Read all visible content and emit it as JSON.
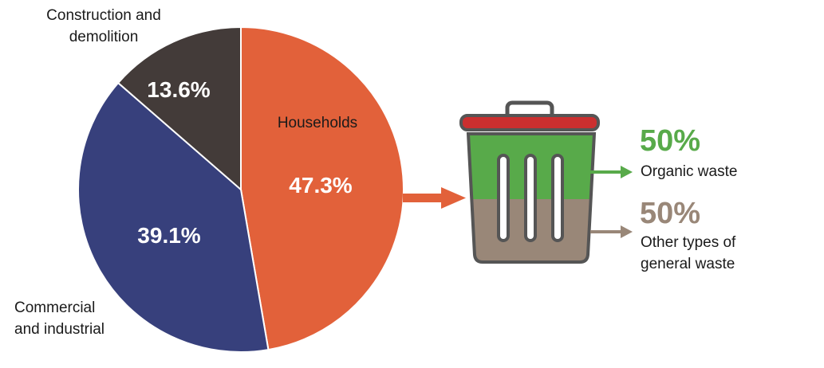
{
  "chart_data": {
    "type": "pie",
    "categories": [
      "Households",
      "Commercial and industrial",
      "Construction and demolition"
    ],
    "values": [
      47.3,
      39.1,
      13.6
    ],
    "value_labels": [
      "47.3%",
      "39.1%",
      "13.6%"
    ],
    "colors": [
      "#e2613a",
      "#37407c",
      "#433b39"
    ],
    "title": "",
    "legend": "none"
  },
  "labels": {
    "households": "Households",
    "commercial_line1": "Commercial",
    "commercial_line2": "and industrial",
    "construction_line1": "Construction and",
    "construction_line2": "demolition"
  },
  "bin_breakdown": {
    "organic": {
      "value": 50,
      "value_label": "50%",
      "label": "Organic waste",
      "color": "#58aa4a"
    },
    "other": {
      "value": 50,
      "value_label": "50%",
      "label_line1": "Other types of",
      "label_line2": "general waste",
      "color": "#998778"
    },
    "lid_color": "#cb2f2f",
    "arrow_color": "#e2613a"
  }
}
